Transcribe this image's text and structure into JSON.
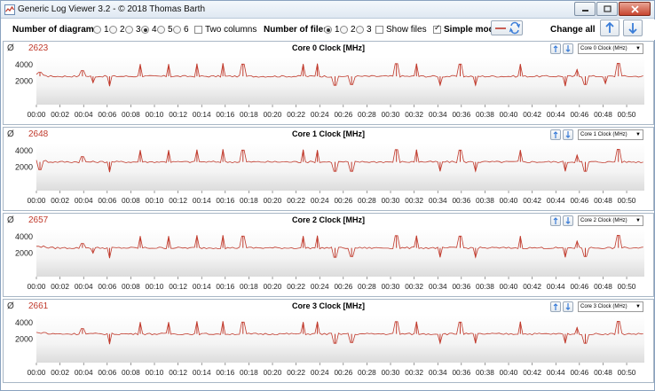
{
  "window": {
    "title": "Generic Log Viewer 3.2 - © 2018 Thomas Barth"
  },
  "toolbar": {
    "num_diagrams_label": "Number of diagrams",
    "diagram_options": [
      "1",
      "2",
      "3",
      "4",
      "5",
      "6"
    ],
    "diagram_selected": "4",
    "two_columns_label": "Two columns",
    "num_files_label": "Number of files",
    "file_options": [
      "1",
      "2",
      "3"
    ],
    "file_selected": "1",
    "show_files_label": "Show files",
    "simple_mode_label": "Simple mode",
    "simple_mode_checked": true,
    "change_all_label": "Change all"
  },
  "colors": {
    "line": "#c0392b",
    "accent": "#3b7dd8",
    "avg": "#c0392b"
  },
  "panels": [
    {
      "avg_symbol": "Ø",
      "avg": "2623",
      "title": "Core 0 Clock [MHz]",
      "selector": "Core 0 Clock (MHz)"
    },
    {
      "avg_symbol": "Ø",
      "avg": "2648",
      "title": "Core 1 Clock [MHz]",
      "selector": "Core 1 Clock (MHz)"
    },
    {
      "avg_symbol": "Ø",
      "avg": "2657",
      "title": "Core 2 Clock [MHz]",
      "selector": "Core 2 Clock (MHz)"
    },
    {
      "avg_symbol": "Ø",
      "avg": "2661",
      "title": "Core 3 Clock [MHz]",
      "selector": "Core 3 Clock (MHz)"
    }
  ],
  "chart_data": [
    {
      "type": "line",
      "title": "Core 0 Clock [MHz]",
      "x": [
        "00:00",
        "00:02",
        "00:04",
        "00:06",
        "00:08",
        "00:10",
        "00:12",
        "00:14",
        "00:16",
        "00:18",
        "00:20",
        "00:22",
        "00:24",
        "00:26",
        "00:28",
        "00:30",
        "00:32",
        "00:34",
        "00:36",
        "00:38",
        "00:40",
        "00:42",
        "00:44",
        "00:46",
        "00:48",
        "00:50"
      ],
      "yticks": [
        2000,
        4000
      ],
      "ylim": [
        0,
        5000
      ],
      "baseline": 2600,
      "spikes_up": [
        [
          0.3,
          3100
        ],
        [
          3.9,
          3300
        ],
        [
          8.8,
          4100
        ],
        [
          11.2,
          4100
        ],
        [
          13.6,
          4150
        ],
        [
          15.8,
          4200
        ],
        [
          17.5,
          4100
        ],
        [
          22.6,
          4100
        ],
        [
          23.8,
          4150
        ],
        [
          30.5,
          4150
        ],
        [
          32.2,
          4150
        ],
        [
          35.9,
          4100
        ],
        [
          41.0,
          4100
        ],
        [
          45.8,
          3450
        ],
        [
          49.3,
          4200
        ]
      ],
      "spikes_down": [
        [
          4.8,
          1800
        ],
        [
          6.2,
          1400
        ],
        [
          25.3,
          1500
        ],
        [
          26.7,
          1600
        ],
        [
          34.2,
          1500
        ],
        [
          37.2,
          1500
        ],
        [
          44.8,
          1400
        ],
        [
          46.5,
          1600
        ],
        [
          48.2,
          1700
        ]
      ]
    },
    {
      "type": "line",
      "title": "Core 1 Clock [MHz]",
      "x": [
        "00:00",
        "00:02",
        "00:04",
        "00:06",
        "00:08",
        "00:10",
        "00:12",
        "00:14",
        "00:16",
        "00:18",
        "00:20",
        "00:22",
        "00:24",
        "00:26",
        "00:28",
        "00:30",
        "00:32",
        "00:34",
        "00:36",
        "00:38",
        "00:40",
        "00:42",
        "00:44",
        "00:46",
        "00:48",
        "00:50"
      ],
      "yticks": [
        2000,
        4000
      ],
      "ylim": [
        0,
        5000
      ],
      "baseline": 2650,
      "spikes_up": [
        [
          3.9,
          3300
        ],
        [
          8.8,
          4100
        ],
        [
          11.2,
          4100
        ],
        [
          13.6,
          4150
        ],
        [
          15.8,
          4200
        ],
        [
          17.5,
          4100
        ],
        [
          22.6,
          4150
        ],
        [
          23.8,
          4100
        ],
        [
          30.5,
          4150
        ],
        [
          32.2,
          4150
        ],
        [
          35.9,
          4100
        ],
        [
          41.0,
          4100
        ],
        [
          45.8,
          3500
        ],
        [
          49.3,
          4200
        ]
      ],
      "spikes_down": [
        [
          0.3,
          1700
        ],
        [
          6.2,
          1400
        ],
        [
          25.3,
          1500
        ],
        [
          26.7,
          1500
        ],
        [
          34.2,
          1500
        ],
        [
          37.2,
          1500
        ],
        [
          44.8,
          1500
        ],
        [
          46.5,
          1500
        ]
      ]
    },
    {
      "type": "line",
      "title": "Core 2 Clock [MHz]",
      "x": [
        "00:00",
        "00:02",
        "00:04",
        "00:06",
        "00:08",
        "00:10",
        "00:12",
        "00:14",
        "00:16",
        "00:18",
        "00:20",
        "00:22",
        "00:24",
        "00:26",
        "00:28",
        "00:30",
        "00:32",
        "00:34",
        "00:36",
        "00:38",
        "00:40",
        "00:42",
        "00:44",
        "00:46",
        "00:48",
        "00:50"
      ],
      "yticks": [
        2000,
        4000
      ],
      "ylim": [
        0,
        5000
      ],
      "baseline": 2650,
      "spikes_up": [
        [
          3.9,
          3200
        ],
        [
          8.8,
          4100
        ],
        [
          11.2,
          4100
        ],
        [
          13.6,
          4200
        ],
        [
          15.8,
          4200
        ],
        [
          17.5,
          4100
        ],
        [
          22.6,
          4100
        ],
        [
          23.8,
          4150
        ],
        [
          30.5,
          4150
        ],
        [
          32.2,
          4150
        ],
        [
          35.9,
          4100
        ],
        [
          41.0,
          4100
        ],
        [
          45.8,
          3500
        ],
        [
          49.3,
          4200
        ]
      ],
      "spikes_down": [
        [
          4.8,
          2000
        ],
        [
          6.2,
          1400
        ],
        [
          25.3,
          1500
        ],
        [
          26.7,
          1600
        ],
        [
          34.2,
          1500
        ],
        [
          37.2,
          1500
        ],
        [
          44.8,
          1500
        ],
        [
          46.5,
          1600
        ]
      ]
    },
    {
      "type": "line",
      "title": "Core 3 Clock [MHz]",
      "x": [
        "00:00",
        "00:02",
        "00:04",
        "00:06",
        "00:08",
        "00:10",
        "00:12",
        "00:14",
        "00:16",
        "00:18",
        "00:20",
        "00:22",
        "00:24",
        "00:26",
        "00:28",
        "00:30",
        "00:32",
        "00:34",
        "00:36",
        "00:38",
        "00:40",
        "00:42",
        "00:44",
        "00:46",
        "00:48",
        "00:50"
      ],
      "yticks": [
        2000,
        4000
      ],
      "ylim": [
        0,
        5000
      ],
      "baseline": 2650,
      "spikes_up": [
        [
          3.9,
          3300
        ],
        [
          8.8,
          4100
        ],
        [
          11.2,
          4100
        ],
        [
          13.6,
          4200
        ],
        [
          15.8,
          4200
        ],
        [
          17.5,
          4100
        ],
        [
          22.6,
          4100
        ],
        [
          23.8,
          4150
        ],
        [
          30.5,
          4150
        ],
        [
          32.2,
          4150
        ],
        [
          35.9,
          4100
        ],
        [
          41.0,
          4150
        ],
        [
          45.8,
          3450
        ],
        [
          49.3,
          4200
        ]
      ],
      "spikes_down": [
        [
          6.2,
          1400
        ],
        [
          25.3,
          1500
        ],
        [
          26.7,
          1600
        ],
        [
          34.2,
          1500
        ],
        [
          37.2,
          1500
        ],
        [
          44.8,
          1500
        ],
        [
          46.5,
          1500
        ]
      ]
    }
  ]
}
